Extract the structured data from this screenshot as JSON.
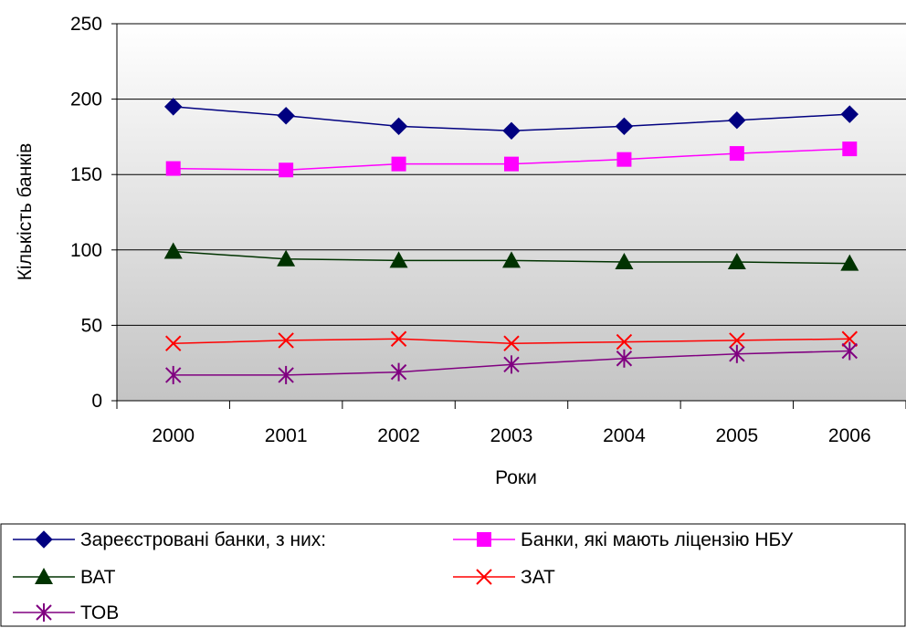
{
  "chart_data": {
    "type": "line",
    "title": "",
    "xlabel": "Роки",
    "ylabel": "Кількість банків",
    "categories": [
      "2000",
      "2001",
      "2002",
      "2003",
      "2004",
      "2005",
      "2006"
    ],
    "ylim": [
      0,
      250
    ],
    "yticks": [
      0,
      50,
      100,
      150,
      200,
      250
    ],
    "grid": "horizontal",
    "legend_position": "bottom",
    "series": [
      {
        "name": "Зареєстровані банки, з них:",
        "values": [
          195,
          189,
          182,
          179,
          182,
          186,
          190
        ],
        "color": "#000080",
        "marker": "diamond"
      },
      {
        "name": "Банки, які мають ліцензію НБУ",
        "values": [
          154,
          153,
          157,
          157,
          160,
          164,
          167
        ],
        "color": "#ff00ff",
        "marker": "square"
      },
      {
        "name": "ВАТ",
        "values": [
          99,
          94,
          93,
          93,
          92,
          92,
          91
        ],
        "color": "#003300",
        "marker": "triangle"
      },
      {
        "name": "ЗАТ",
        "values": [
          38,
          40,
          41,
          38,
          39,
          40,
          41
        ],
        "color": "#ff0000",
        "marker": "x"
      },
      {
        "name": "ТОВ",
        "values": [
          17,
          17,
          19,
          24,
          28,
          31,
          33
        ],
        "color": "#800080",
        "marker": "asterisk"
      }
    ]
  }
}
